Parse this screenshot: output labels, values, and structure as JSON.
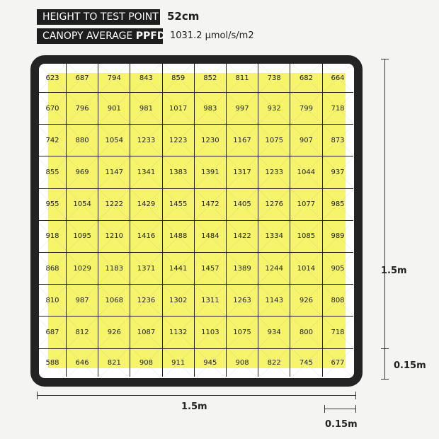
{
  "header": {
    "height_label": "HEIGHT TO TEST POINT",
    "height_value": "52cm",
    "ppfd_label_prefix": "CANOPY AVERAGE ",
    "ppfd_label_bold": "PPFD",
    "ppfd_value": "1031.2 μmol/s/m2"
  },
  "grid": {
    "highlight_color": "#f5f46a",
    "rows": [
      [
        623,
        687,
        794,
        843,
        859,
        852,
        811,
        738,
        682,
        664
      ],
      [
        670,
        796,
        901,
        981,
        1017,
        983,
        997,
        932,
        799,
        718
      ],
      [
        742,
        880,
        1054,
        1233,
        1223,
        1230,
        1167,
        1075,
        907,
        873
      ],
      [
        855,
        969,
        1147,
        1341,
        1383,
        1391,
        1317,
        1233,
        1044,
        937
      ],
      [
        955,
        1054,
        1222,
        1429,
        1455,
        1472,
        1405,
        1276,
        1077,
        985
      ],
      [
        918,
        1095,
        1210,
        1416,
        1488,
        1484,
        1422,
        1334,
        1085,
        989
      ],
      [
        868,
        1029,
        1183,
        1371,
        1441,
        1457,
        1389,
        1244,
        1014,
        905
      ],
      [
        810,
        987,
        1068,
        1236,
        1302,
        1311,
        1263,
        1143,
        926,
        808
      ],
      [
        687,
        812,
        926,
        1087,
        1132,
        1103,
        1075,
        934,
        800,
        718
      ],
      [
        588,
        646,
        821,
        908,
        911,
        945,
        908,
        822,
        745,
        677
      ]
    ]
  },
  "dimensions": {
    "width": "1.5m",
    "height": "1.5m",
    "cell_width": "0.15m",
    "cell_height": "0.15m"
  }
}
